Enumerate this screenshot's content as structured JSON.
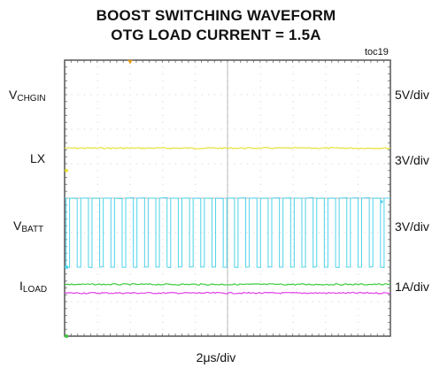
{
  "title": "BOOST SWITCHING WAVEFORM",
  "subtitle": "OTG LOAD CURRENT = 1.5A",
  "figure_id": "toc19",
  "time_scale": "2μs/div",
  "traces": [
    {
      "main": "V",
      "sub": "CHGIN",
      "scale": "5V/div",
      "color": "#e8e03a"
    },
    {
      "main": "LX",
      "sub": "",
      "scale": "3V/div",
      "color": "#4fd3ea"
    },
    {
      "main": "V",
      "sub": "BATT",
      "scale": "3V/div",
      "color": "#e040e8"
    },
    {
      "main": "I",
      "sub": "LOAD",
      "scale": "1A/div",
      "color": "#3ccc3c"
    }
  ],
  "chart_data": {
    "type": "line",
    "title": "BOOST SWITCHING WAVEFORM",
    "subtitle": "OTG LOAD CURRENT = 1.5A",
    "xlabel": "2μs/div",
    "x_divisions": 10,
    "y_divisions": 8,
    "time_per_div_us": 2,
    "xlim_us": [
      0,
      20
    ],
    "grid": true,
    "series": [
      {
        "name": "VCHGIN",
        "scale": "5V/div",
        "kind": "dc",
        "level_div": 5.45,
        "zero_div": 4.8
      },
      {
        "name": "LX",
        "scale": "3V/div",
        "kind": "square",
        "high_div": 4.0,
        "low_div": 2.0,
        "cycles": 29,
        "duty": 0.68,
        "zero_div": 2.0
      },
      {
        "name": "VBATT",
        "scale": "3V/div",
        "kind": "dc",
        "level_div": 1.25,
        "zero_div": 0.0
      },
      {
        "name": "ILOAD",
        "scale": "1A/div",
        "kind": "dc",
        "level_div": 1.5,
        "zero_div": 0.0
      }
    ]
  },
  "colors": {
    "frame": "#555555",
    "grid": "#cccccc",
    "trigger_marker": "#e89a1a"
  }
}
